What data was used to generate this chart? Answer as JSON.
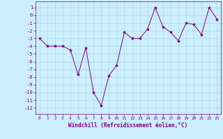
{
  "x": [
    0,
    1,
    2,
    3,
    4,
    5,
    6,
    7,
    8,
    9,
    10,
    11,
    12,
    13,
    14,
    15,
    16,
    17,
    18,
    19,
    20,
    21,
    22,
    23
  ],
  "y": [
    -3,
    -4,
    -4,
    -4,
    -4.5,
    -7.7,
    -4.2,
    -10,
    -11.7,
    -7.8,
    -6.5,
    -2.2,
    -3,
    -3,
    -1.8,
    1,
    -1.5,
    -2.2,
    -3.3,
    -1,
    -1.2,
    -2.5,
    1,
    -0.5
  ],
  "line_color": "#800080",
  "marker": "*",
  "marker_color": "#800080",
  "bg_color": "#cceeff",
  "grid_color": "#aadddd",
  "tick_color": "#800080",
  "label_color": "#800080",
  "xlabel": "Windchill (Refroidissement éolien,°C)",
  "ylim": [
    -12.8,
    1.8
  ],
  "xlim": [
    -0.5,
    23.5
  ],
  "yticks": [
    1,
    0,
    -1,
    -2,
    -3,
    -4,
    -5,
    -6,
    -7,
    -8,
    -9,
    -10,
    -11,
    -12
  ],
  "xticks": [
    0,
    1,
    2,
    3,
    4,
    5,
    6,
    7,
    8,
    9,
    10,
    11,
    12,
    13,
    14,
    15,
    16,
    17,
    18,
    19,
    20,
    21,
    22,
    23
  ]
}
